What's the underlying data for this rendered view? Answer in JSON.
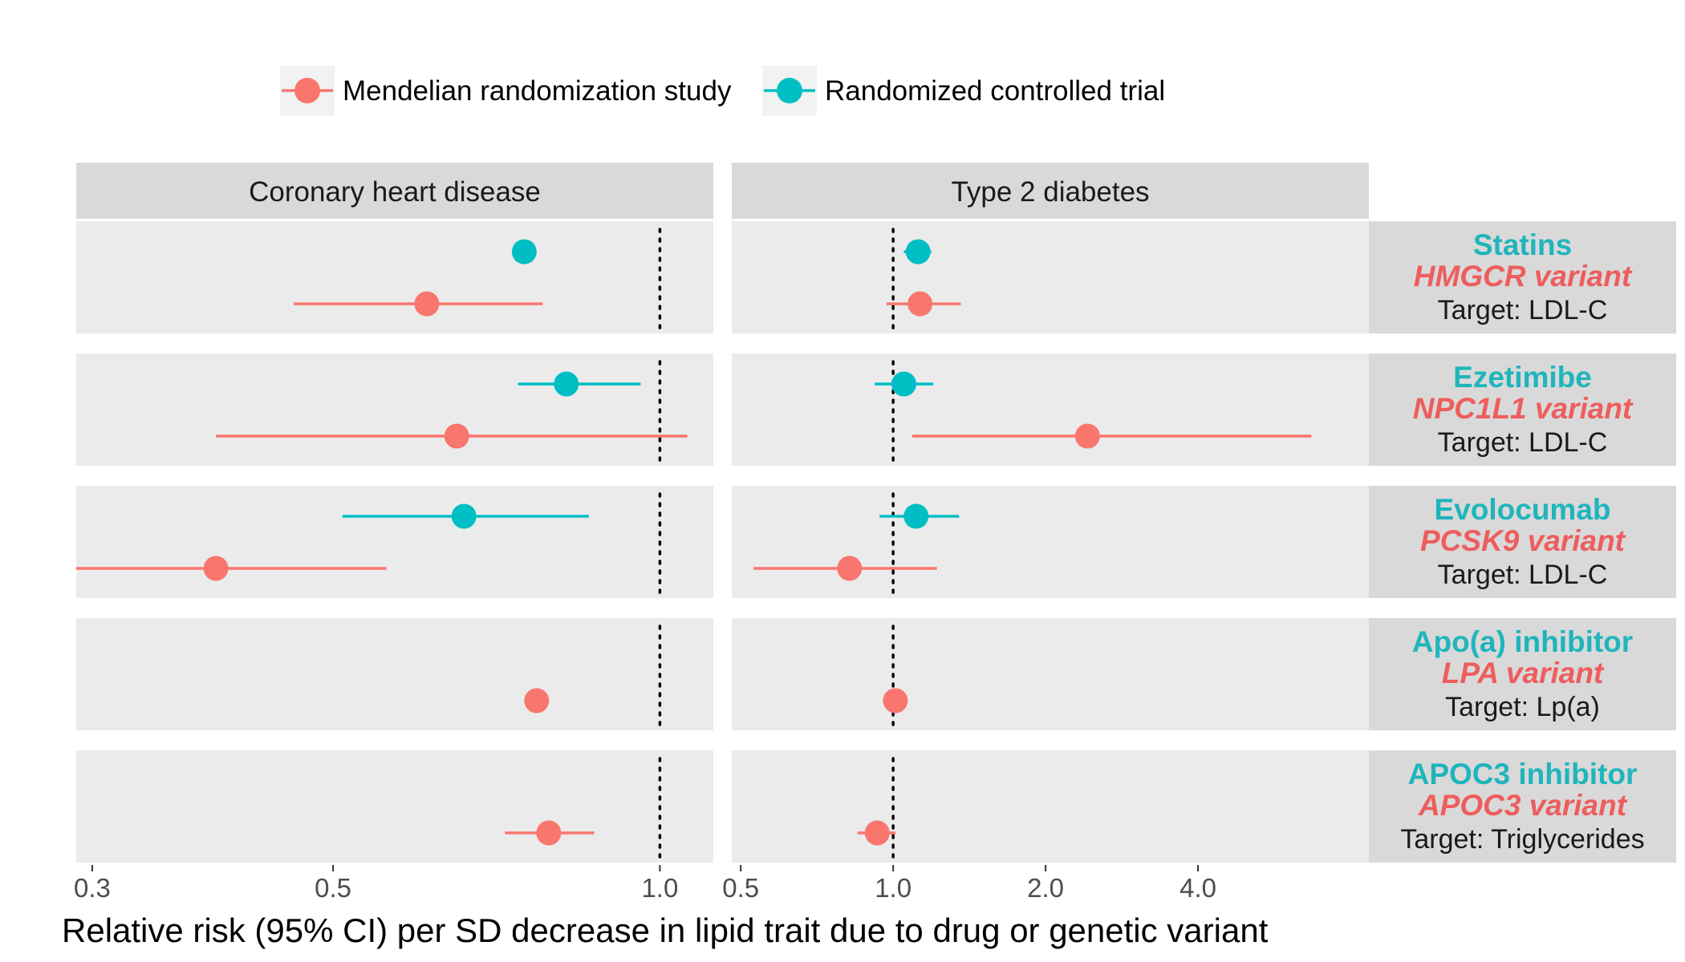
{
  "chart_data": {
    "type": "scatter",
    "subtype": "forest-plot",
    "title": "",
    "xlabel": "Relative risk (95% CI) per SD decrease in lipid trait due to drug or genetic variant",
    "ylabel": "",
    "x_scale": "log",
    "reference_line": 1.0,
    "legend_position": "top",
    "grid": false,
    "legend": [
      {
        "name": "Mendelian randomization study",
        "color": "#F8766D"
      },
      {
        "name": "Randomized controlled trial",
        "color": "#00BFC4"
      }
    ],
    "panels": [
      {
        "title": "Coronary heart disease",
        "xlim": [
          0.29,
          1.12
        ],
        "ticks": [
          0.3,
          0.5,
          1.0
        ],
        "tick_labels": [
          "0.3",
          "0.5",
          "1.0"
        ]
      },
      {
        "title": "Type 2 diabetes",
        "xlim": [
          0.48,
          8.7
        ],
        "ticks": [
          0.5,
          1.0,
          2.0,
          4.0
        ],
        "tick_labels": [
          "0.5",
          "1.0",
          "2.0",
          "4.0"
        ]
      }
    ],
    "rows": [
      {
        "drug": "Statins",
        "variant": "HMGCR variant",
        "target": "Target: LDL-C",
        "estimates": [
          {
            "panel": "Coronary heart disease",
            "series": "Randomized controlled trial",
            "est": 0.75,
            "lo": 0.75,
            "hi": 0.75
          },
          {
            "panel": "Coronary heart disease",
            "series": "Mendelian randomization study",
            "est": 0.61,
            "lo": 0.46,
            "hi": 0.78
          },
          {
            "panel": "Type 2 diabetes",
            "series": "Randomized controlled trial",
            "est": 1.12,
            "lo": 1.05,
            "hi": 1.19
          },
          {
            "panel": "Type 2 diabetes",
            "series": "Mendelian randomization study",
            "est": 1.13,
            "lo": 0.97,
            "hi": 1.36
          }
        ]
      },
      {
        "drug": "Ezetimibe",
        "variant": "NPC1L1 variant",
        "target": "Target: LDL-C",
        "estimates": [
          {
            "panel": "Coronary heart disease",
            "series": "Randomized controlled trial",
            "est": 0.82,
            "lo": 0.74,
            "hi": 0.96
          },
          {
            "panel": "Coronary heart disease",
            "series": "Mendelian randomization study",
            "est": 0.65,
            "lo": 0.39,
            "hi": 1.06
          },
          {
            "panel": "Type 2 diabetes",
            "series": "Randomized controlled trial",
            "est": 1.05,
            "lo": 0.92,
            "hi": 1.2
          },
          {
            "panel": "Type 2 diabetes",
            "series": "Mendelian randomization study",
            "est": 2.42,
            "lo": 1.09,
            "hi": 6.7
          }
        ]
      },
      {
        "drug": "Evolocumab",
        "variant": "PCSK9 variant",
        "target": "Target: LDL-C",
        "estimates": [
          {
            "panel": "Coronary heart disease",
            "series": "Randomized controlled trial",
            "est": 0.66,
            "lo": 0.51,
            "hi": 0.86
          },
          {
            "panel": "Coronary heart disease",
            "series": "Mendelian randomization study",
            "est": 0.39,
            "lo": 0.29,
            "hi": 0.56
          },
          {
            "panel": "Type 2 diabetes",
            "series": "Randomized controlled trial",
            "est": 1.11,
            "lo": 0.94,
            "hi": 1.35
          },
          {
            "panel": "Type 2 diabetes",
            "series": "Mendelian randomization study",
            "est": 0.82,
            "lo": 0.53,
            "hi": 1.22
          }
        ]
      },
      {
        "drug": "Apo(a) inhibitor",
        "variant": "LPA variant",
        "target": "Target: Lp(a)",
        "estimates": [
          {
            "panel": "Coronary heart disease",
            "series": "Mendelian randomization study",
            "est": 0.77,
            "lo": 0.755,
            "hi": 0.79
          },
          {
            "panel": "Type 2 diabetes",
            "series": "Mendelian randomization study",
            "est": 1.01,
            "lo": 0.98,
            "hi": 1.04
          }
        ]
      },
      {
        "drug": "APOC3 inhibitor",
        "variant": "APOC3 variant",
        "target": "Target: Triglycerides",
        "estimates": [
          {
            "panel": "Coronary heart disease",
            "series": "Mendelian randomization study",
            "est": 0.79,
            "lo": 0.72,
            "hi": 0.87
          },
          {
            "panel": "Type 2 diabetes",
            "series": "Mendelian randomization study",
            "est": 0.93,
            "lo": 0.85,
            "hi": 1.01
          }
        ]
      }
    ]
  }
}
